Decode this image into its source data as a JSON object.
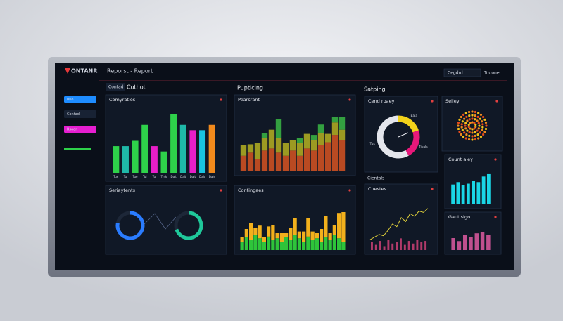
{
  "header": {
    "logo": "ONTANR",
    "title": "Reporst - Report",
    "search": "Cegdrd",
    "user": "Tudone"
  },
  "sidebar": [
    "Ruo",
    "Contad",
    "Rsoor"
  ],
  "sections": [
    "Contad",
    "Cothot",
    "Pupticing",
    "Satping",
    "Cientals"
  ],
  "panels": [
    {
      "title": "Comyraties",
      "type": "bar",
      "ylim": [
        0,
        60
      ],
      "categories": [
        "Tue",
        "Tul",
        "Tue",
        "Tul",
        "Tul",
        "Tmk",
        "Dalt",
        "Dalt",
        "Dalt",
        "Daly",
        "Dals"
      ],
      "values": [
        25,
        25,
        30,
        45,
        25,
        20,
        55,
        45,
        40,
        40,
        45
      ],
      "colors": [
        "#2ed14a",
        "#1fb8a8",
        "#2ed14a",
        "#2ed14a",
        "#e81ec8",
        "#2ed14a",
        "#2ed14a",
        "#1fb8a8",
        "#e81ec8",
        "#19c4e0",
        "#f28a1c"
      ]
    },
    {
      "title": "Pearsrant",
      "type": "stacked",
      "ylim": [
        0,
        60
      ],
      "series": [
        {
          "color": "#b94a22",
          "values": [
            15,
            18,
            12,
            20,
            22,
            18,
            15,
            20,
            15,
            22,
            20,
            25,
            28,
            35,
            30
          ]
        },
        {
          "color": "#9c9a22",
          "values": [
            10,
            8,
            15,
            12,
            18,
            14,
            12,
            10,
            12,
            14,
            10,
            12,
            8,
            12,
            10
          ]
        },
        {
          "color": "#33a040",
          "values": [
            0,
            0,
            0,
            5,
            0,
            18,
            0,
            0,
            5,
            0,
            5,
            8,
            0,
            5,
            12
          ]
        }
      ]
    },
    {
      "title": "Cend rpaey",
      "type": "donut",
      "values": [
        20,
        22,
        58
      ],
      "colors": [
        "#f2d21a",
        "#e8187a",
        "#e4e6ec"
      ],
      "labels": [
        "Eala",
        "Tivals",
        "Tus"
      ]
    },
    {
      "title": "Seiley",
      "type": "radial"
    },
    {
      "title": "Seriaytents",
      "type": "gauges",
      "ylim": [
        0,
        100
      ],
      "values": [
        78,
        70
      ],
      "colors": [
        "#2a7cff",
        "#1fc89a"
      ]
    },
    {
      "title": "Contingaes",
      "type": "stacked",
      "ylim": [
        0,
        60
      ],
      "series": [
        {
          "color": "#2ec43a",
          "values": [
            10,
            15,
            12,
            18,
            14,
            10,
            16,
            12,
            14,
            10,
            15,
            12,
            18,
            14,
            10,
            16,
            12,
            14,
            10,
            15,
            12,
            18,
            14,
            10
          ]
        },
        {
          "color": "#f2b01c",
          "values": [
            5,
            10,
            20,
            8,
            15,
            5,
            12,
            18,
            6,
            10,
            5,
            14,
            20,
            8,
            12,
            22,
            10,
            6,
            15,
            25,
            8,
            12,
            30,
            35
          ]
        }
      ]
    },
    {
      "title": "Cuestes",
      "type": "line",
      "ylim": [
        0,
        40
      ],
      "color": "#e2d23a",
      "values": [
        8,
        10,
        12,
        11,
        15,
        20,
        18,
        25,
        22,
        28,
        26,
        30,
        29,
        32
      ],
      "bars": [
        6,
        4,
        7,
        3,
        8,
        5,
        6,
        9,
        4,
        7,
        5,
        8,
        6,
        7
      ],
      "bar_color": "#b03a6a"
    },
    {
      "title": "Count aley",
      "type": "bar",
      "ylim": [
        0,
        45
      ],
      "values": [
        25,
        28,
        24,
        26,
        30,
        28,
        35,
        38
      ],
      "color": "#1ad6e6"
    },
    {
      "title": "Gaut sigo",
      "type": "bar",
      "ylim": [
        0,
        40
      ],
      "values": [
        20,
        15,
        25,
        22,
        28,
        30,
        25
      ],
      "color": "#c0508e"
    }
  ]
}
